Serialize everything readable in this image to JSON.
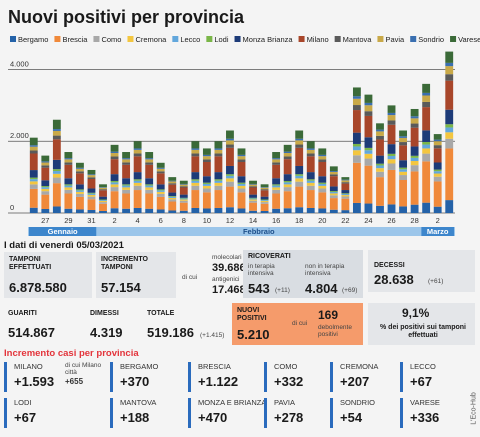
{
  "chart_data": {
    "type": "bar",
    "stacked": true,
    "title": "Nuovi positivi per provincia",
    "categories": [
      null,
      "27",
      null,
      "29",
      null,
      "31",
      null,
      "2",
      null,
      "4",
      null,
      "6",
      null,
      "8",
      null,
      "10",
      null,
      "12",
      null,
      "14",
      null,
      "16",
      null,
      "18",
      null,
      "20",
      null,
      "22",
      null,
      "24",
      null,
      "26",
      null,
      "28",
      null,
      "2",
      null
    ],
    "months": [
      "Gennaio",
      "Febbraio",
      "Marzo"
    ],
    "ylim": [
      0,
      4600
    ],
    "yticks": [
      0,
      {
        "value": 2000,
        "label": "2.000"
      },
      {
        "value": 4000,
        "label": "4.000"
      }
    ],
    "grid": true,
    "series": [
      {
        "name": "Bergamo",
        "color": "#2462a8",
        "values": [
          147,
          112,
          182,
          119,
          98,
          84,
          56,
          133,
          119,
          140,
          119,
          98,
          70,
          63,
          140,
          126,
          140,
          161,
          126,
          63,
          56,
          119,
          133,
          161,
          140,
          126,
          91,
          80,
          280,
          264,
          200,
          240,
          184,
          232,
          288,
          176,
          360
        ]
      },
      {
        "name": "Brescia",
        "color": "#f0893a",
        "values": [
          525,
          400,
          650,
          425,
          350,
          300,
          200,
          475,
          425,
          500,
          425,
          350,
          250,
          225,
          500,
          450,
          500,
          575,
          450,
          225,
          200,
          425,
          475,
          575,
          500,
          450,
          325,
          320,
          1120,
          1056,
          800,
          960,
          736,
          928,
          1152,
          704,
          1440
        ]
      },
      {
        "name": "Como",
        "color": "#a8a8a8",
        "values": [
          126,
          96,
          156,
          102,
          84,
          72,
          48,
          114,
          102,
          120,
          102,
          84,
          60,
          54,
          120,
          108,
          120,
          138,
          108,
          54,
          48,
          102,
          114,
          138,
          120,
          108,
          78,
          60,
          210,
          198,
          150,
          180,
          138,
          174,
          216,
          132,
          270
        ]
      },
      {
        "name": "Cremona",
        "color": "#f3c63f",
        "values": [
          84,
          64,
          104,
          68,
          56,
          48,
          32,
          76,
          68,
          80,
          68,
          56,
          40,
          36,
          80,
          72,
          80,
          92,
          72,
          36,
          32,
          68,
          76,
          92,
          80,
          72,
          52,
          40,
          140,
          132,
          100,
          120,
          92,
          116,
          144,
          88,
          180
        ]
      },
      {
        "name": "Lecco",
        "color": "#62a7dc",
        "values": [
          63,
          48,
          78,
          51,
          42,
          36,
          24,
          57,
          51,
          60,
          51,
          42,
          30,
          27,
          60,
          54,
          60,
          69,
          54,
          27,
          24,
          51,
          57,
          69,
          60,
          54,
          39,
          30,
          105,
          99,
          75,
          90,
          69,
          87,
          108,
          66,
          135
        ]
      },
      {
        "name": "Lodi",
        "color": "#7ab648",
        "values": [
          42,
          32,
          52,
          34,
          28,
          24,
          16,
          38,
          34,
          40,
          34,
          28,
          20,
          18,
          40,
          36,
          40,
          46,
          36,
          18,
          16,
          34,
          38,
          46,
          40,
          36,
          26,
          20,
          70,
          66,
          50,
          60,
          46,
          58,
          72,
          44,
          90
        ]
      },
      {
        "name": "Monza Brianza",
        "color": "#1d3b78",
        "values": [
          210,
          160,
          260,
          170,
          140,
          120,
          80,
          190,
          170,
          200,
          170,
          140,
          100,
          90,
          200,
          180,
          200,
          230,
          180,
          90,
          80,
          170,
          190,
          230,
          200,
          180,
          130,
          90,
          315,
          297,
          225,
          270,
          207,
          261,
          324,
          198,
          405
        ]
      },
      {
        "name": "Milano",
        "color": "#a8462a",
        "values": [
          462,
          352,
          572,
          374,
          308,
          264,
          176,
          418,
          374,
          440,
          374,
          308,
          220,
          198,
          440,
          396,
          440,
          506,
          396,
          198,
          176,
          374,
          418,
          506,
          440,
          396,
          286,
          180,
          630,
          594,
          450,
          540,
          414,
          522,
          648,
          396,
          810
        ]
      },
      {
        "name": "Mantova",
        "color": "#5a5a5a",
        "values": [
          84,
          64,
          104,
          68,
          56,
          48,
          32,
          76,
          68,
          80,
          68,
          56,
          40,
          36,
          80,
          72,
          80,
          92,
          72,
          36,
          32,
          68,
          76,
          92,
          80,
          72,
          52,
          40,
          140,
          132,
          100,
          120,
          92,
          116,
          144,
          88,
          180
        ]
      },
      {
        "name": "Pavia",
        "color": "#c9a948",
        "values": [
          105,
          80,
          130,
          85,
          70,
          60,
          40,
          95,
          85,
          100,
          85,
          70,
          50,
          45,
          100,
          90,
          100,
          115,
          90,
          45,
          40,
          85,
          95,
          115,
          100,
          90,
          65,
          50,
          175,
          165,
          125,
          150,
          115,
          145,
          180,
          110,
          225
        ]
      },
      {
        "name": "Sondrio",
        "color": "#3a6fb0",
        "values": [
          42,
          32,
          52,
          34,
          28,
          24,
          16,
          38,
          34,
          40,
          34,
          28,
          20,
          18,
          40,
          36,
          40,
          46,
          36,
          18,
          16,
          34,
          38,
          46,
          40,
          36,
          26,
          20,
          70,
          66,
          50,
          60,
          46,
          58,
          72,
          44,
          90
        ]
      },
      {
        "name": "Varese",
        "color": "#3b6a38",
        "values": [
          210,
          160,
          260,
          170,
          140,
          120,
          80,
          190,
          170,
          200,
          170,
          140,
          100,
          90,
          200,
          180,
          200,
          230,
          180,
          90,
          80,
          170,
          190,
          230,
          200,
          180,
          130,
          70,
          245,
          231,
          175,
          210,
          161,
          203,
          252,
          154,
          315
        ]
      }
    ]
  },
  "panel": {
    "heading": "I dati di venerdì 05/03/2021",
    "tamponi": {
      "label": "TAMPONI EFFETTUATI",
      "value": "6.878.580"
    },
    "incremento": {
      "label": "INCREMENTO TAMPONI",
      "value": "57.154",
      "dicui": "di cui",
      "mol_label": "molecolari",
      "mol_value": "39.686",
      "ant_label": "antigenici",
      "ant_value": "17.468"
    },
    "ricoverati": {
      "label": "RICOVERATI",
      "ti_label": "in terapia intensiva",
      "ti_value": "543",
      "ti_delta": "(+11)",
      "nti_label": "non in terapia intensiva",
      "nti_value": "4.804",
      "nti_delta": "(+69)"
    },
    "decessi": {
      "label": "DECESSI",
      "value": "28.638",
      "delta": "(+61)"
    },
    "guariti": {
      "label": "GUARITI",
      "value": "514.867"
    },
    "dimessi": {
      "label": "DIMESSI",
      "value": "4.319"
    },
    "totale": {
      "label": "TOTALE",
      "value": "519.186",
      "delta": "(+1.415)"
    },
    "nuovi": {
      "label": "NUOVI POSITIVI",
      "value": "5.210",
      "dicui": "di cui",
      "deb_value": "169",
      "deb_label": "debolmente positivi"
    },
    "perc": {
      "value": "9,1%",
      "label": "% dei positivi sui tamponi effettuati"
    },
    "prov_heading": "Incremento casi per provincia",
    "province": [
      {
        "name": "MILANO",
        "value": "+1.593",
        "sub_label": "di cui Milano città",
        "sub_value": "+655"
      },
      {
        "name": "BERGAMO",
        "value": "+370"
      },
      {
        "name": "BRESCIA",
        "value": "+1.122"
      },
      {
        "name": "COMO",
        "value": "+332"
      },
      {
        "name": "CREMONA",
        "value": "+207"
      },
      {
        "name": "LECCO",
        "value": "+67"
      },
      {
        "name": "LODI",
        "value": "+67"
      },
      {
        "name": "MANTOVA",
        "value": "+188"
      },
      {
        "name": "MONZA E BRIANZA",
        "value": "+470"
      },
      {
        "name": "PAVIA",
        "value": "+278"
      },
      {
        "name": "SONDRIO",
        "value": "+54"
      },
      {
        "name": "VARESE",
        "value": "+336"
      }
    ],
    "credit": "L'Eco-Hub"
  }
}
